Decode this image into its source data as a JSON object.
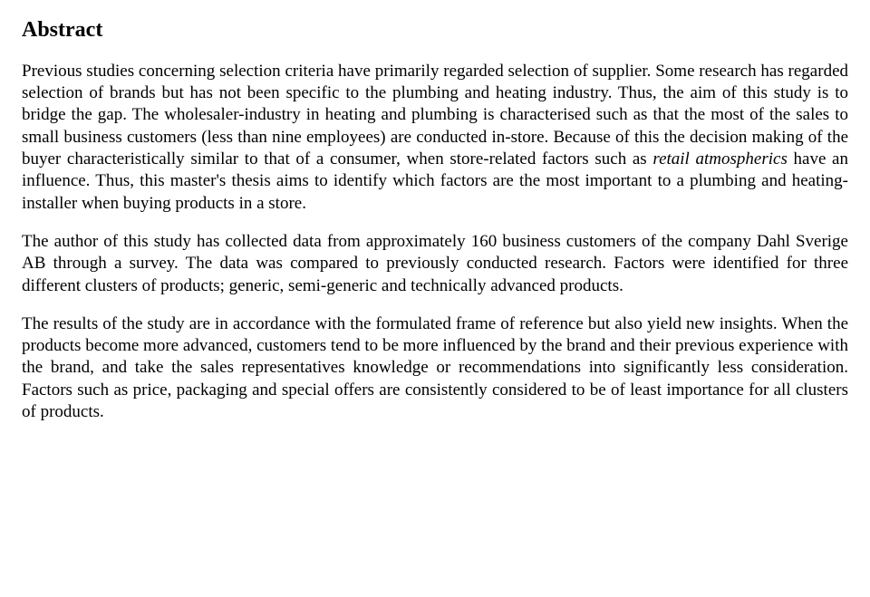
{
  "heading": "Abstract",
  "p1_a": "Previous studies concerning selection criteria have primarily regarded selection of supplier. Some research has regarded selection of brands but has not been specific to the plumbing and heating industry. Thus, the aim of this study is to bridge the gap. The wholesaler-industry in heating and plumbing is characterised such as that the most of the sales to small business customers (less than nine employees) are conducted in-store. Because of this the decision making of the buyer characteristically similar to that of a consumer, when store-related factors such as ",
  "p1_italic": "retail atmospherics",
  "p1_b": " have an influence. Thus, this master's thesis aims to identify which factors are the most important to a plumbing and heating-installer when buying products in a store.",
  "p2": "The author of this study has collected data from approximately 160 business customers of the company Dahl Sverige AB through a survey. The data was compared to previously conducted research. Factors were identified for three different clusters of products; generic, semi-generic and technically advanced products.",
  "p3": "The results of the study are in accordance with the formulated frame of reference but also yield new insights. When the products become more advanced, customers tend to be more influenced by the brand and their previous experience with the brand, and take the sales representatives knowledge or recommendations into significantly less consideration. Factors such as price, packaging and special offers are consistently considered to be of least importance for all clusters of products."
}
